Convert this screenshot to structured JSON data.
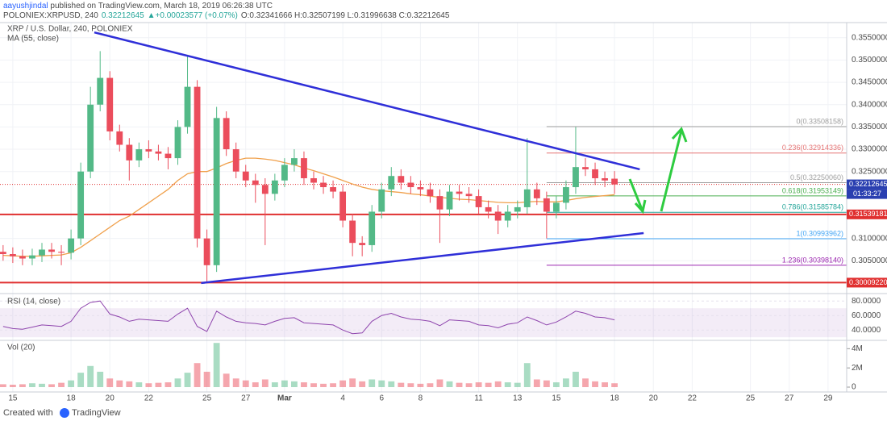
{
  "header": {
    "author": "aayushjindal",
    "published": " published on TradingView.com, March 18, 2019 06:26:38 UTC",
    "symbol": "POLONIEX:XRPUSD, 240",
    "price": "0.32212645",
    "change": "▲+0.00023577 (+0.07%)",
    "ohlc": "O:0.32341666 H:0.32507199 L:0.31996638 C:0.32212645"
  },
  "footer": {
    "created": "Created with",
    "brand": "TradingView"
  },
  "chart_data": {
    "type": "candlestick",
    "title": "XRP / U.S. Dollar, 240, POLONIEX",
    "grid": true,
    "up_color": "#53b987",
    "down_color": "#eb4d5c",
    "xlim": [
      -0.66,
      42.96
    ],
    "xticks": [
      {
        "value": 0,
        "label": "15"
      },
      {
        "value": 3,
        "label": "18"
      },
      {
        "value": 5,
        "label": "20"
      },
      {
        "value": 7,
        "label": "22"
      },
      {
        "value": 10,
        "label": "25"
      },
      {
        "value": 12,
        "label": "27"
      },
      {
        "value": 14,
        "label": "Mar"
      },
      {
        "value": 17,
        "label": "4"
      },
      {
        "value": 19,
        "label": "6"
      },
      {
        "value": 21,
        "label": "8"
      },
      {
        "value": 24,
        "label": "11"
      },
      {
        "value": 26,
        "label": "13"
      },
      {
        "value": 28,
        "label": "15"
      },
      {
        "value": 31,
        "label": "18"
      },
      {
        "value": 33,
        "label": "20"
      },
      {
        "value": 35,
        "label": "22"
      },
      {
        "value": 38,
        "label": "25"
      },
      {
        "value": 40,
        "label": "27"
      },
      {
        "value": 42,
        "label": "29"
      }
    ],
    "ylim": [
      0.298,
      0.3584
    ],
    "yticks": [
      {
        "value": 0.305,
        "label": "0.30500000"
      },
      {
        "value": 0.31,
        "label": "0.31000000"
      },
      {
        "value": 0.325,
        "label": "0.32500000"
      },
      {
        "value": 0.33,
        "label": "0.33000000"
      },
      {
        "value": 0.335,
        "label": "0.33500000"
      },
      {
        "value": 0.34,
        "label": "0.34000000"
      },
      {
        "value": 0.345,
        "label": "0.34500000"
      },
      {
        "value": 0.35,
        "label": "0.35000000"
      },
      {
        "value": 0.355,
        "label": "0.35500000"
      }
    ],
    "x": [
      -0.5,
      0,
      0.5,
      1,
      1.5,
      2,
      2.5,
      3,
      3.5,
      4,
      4.5,
      5,
      5.5,
      6,
      6.5,
      7,
      7.5,
      8,
      8.5,
      9,
      9.5,
      10,
      10.5,
      11,
      11.5,
      12,
      12.5,
      13,
      13.5,
      14,
      14.5,
      15,
      15.5,
      16,
      16.5,
      17,
      17.5,
      18,
      18.5,
      19,
      19.5,
      20,
      20.5,
      21,
      21.5,
      22,
      22.5,
      23,
      23.5,
      24,
      24.5,
      25,
      25.5,
      26,
      26.5,
      27,
      27.5,
      28,
      28.5,
      29,
      29.5,
      30,
      30.5,
      31
    ],
    "open": [
      0.307,
      0.3065,
      0.306,
      0.3055,
      0.3062,
      0.3075,
      0.307,
      0.3068,
      0.31,
      0.325,
      0.34,
      0.346,
      0.334,
      0.331,
      0.3275,
      0.33,
      0.3295,
      0.329,
      0.328,
      0.335,
      0.344,
      0.31,
      0.304,
      0.337,
      0.33,
      0.325,
      0.323,
      0.322,
      0.32,
      0.323,
      0.3265,
      0.328,
      0.3235,
      0.3225,
      0.3215,
      0.3205,
      0.314,
      0.309,
      0.3085,
      0.316,
      0.321,
      0.324,
      0.3225,
      0.3215,
      0.321,
      0.3195,
      0.3165,
      0.3205,
      0.32,
      0.3195,
      0.317,
      0.316,
      0.314,
      0.316,
      0.317,
      0.321,
      0.319,
      0.316,
      0.318,
      0.3215,
      0.326,
      0.3255,
      0.3235,
      0.3234
    ],
    "high": [
      0.3085,
      0.308,
      0.3075,
      0.3077,
      0.309,
      0.309,
      0.3085,
      0.312,
      0.327,
      0.344,
      0.352,
      0.3475,
      0.3355,
      0.3325,
      0.3315,
      0.332,
      0.331,
      0.3305,
      0.3365,
      0.351,
      0.3455,
      0.312,
      0.3395,
      0.3385,
      0.3315,
      0.3265,
      0.3245,
      0.3235,
      0.3245,
      0.328,
      0.33,
      0.3295,
      0.325,
      0.324,
      0.323,
      0.322,
      0.3155,
      0.3105,
      0.3175,
      0.3225,
      0.326,
      0.3255,
      0.324,
      0.323,
      0.3225,
      0.321,
      0.322,
      0.322,
      0.3215,
      0.321,
      0.3185,
      0.3175,
      0.3175,
      0.3185,
      0.3325,
      0.3225,
      0.3205,
      0.3195,
      0.323,
      0.335,
      0.328,
      0.327,
      0.325,
      0.3251
    ],
    "low": [
      0.305,
      0.3045,
      0.304,
      0.304,
      0.3047,
      0.3055,
      0.304,
      0.3053,
      0.3085,
      0.3235,
      0.3385,
      0.332,
      0.3295,
      0.323,
      0.326,
      0.328,
      0.3275,
      0.3255,
      0.3265,
      0.3335,
      0.308,
      0.3,
      0.3025,
      0.3285,
      0.3235,
      0.3215,
      0.318,
      0.3085,
      0.3185,
      0.3215,
      0.325,
      0.322,
      0.321,
      0.32,
      0.319,
      0.3125,
      0.306,
      0.306,
      0.307,
      0.3145,
      0.3195,
      0.321,
      0.32,
      0.3195,
      0.318,
      0.309,
      0.315,
      0.3185,
      0.318,
      0.3155,
      0.3145,
      0.311,
      0.3125,
      0.3145,
      0.3155,
      0.3175,
      0.31,
      0.3145,
      0.3165,
      0.32,
      0.324,
      0.322,
      0.3215,
      0.32
    ],
    "close": [
      0.3065,
      0.306,
      0.3055,
      0.3062,
      0.3075,
      0.307,
      0.3068,
      0.31,
      0.325,
      0.34,
      0.346,
      0.334,
      0.331,
      0.3275,
      0.33,
      0.3295,
      0.329,
      0.328,
      0.335,
      0.344,
      0.31,
      0.304,
      0.337,
      0.33,
      0.325,
      0.323,
      0.322,
      0.32,
      0.323,
      0.3265,
      0.328,
      0.3235,
      0.3225,
      0.3215,
      0.3205,
      0.314,
      0.309,
      0.3085,
      0.316,
      0.321,
      0.324,
      0.3225,
      0.3215,
      0.321,
      0.3195,
      0.3165,
      0.3205,
      0.32,
      0.3195,
      0.317,
      0.316,
      0.314,
      0.316,
      0.317,
      0.321,
      0.319,
      0.316,
      0.318,
      0.3215,
      0.326,
      0.3255,
      0.3235,
      0.323,
      0.3221
    ],
    "ma": {
      "name": "MA (55, close)",
      "color": "#f0a04b",
      "values": [
        0.3062,
        0.3061,
        0.306,
        0.306,
        0.3061,
        0.3062,
        0.3063,
        0.3068,
        0.308,
        0.3095,
        0.311,
        0.3125,
        0.314,
        0.315,
        0.3165,
        0.318,
        0.3195,
        0.321,
        0.323,
        0.3245,
        0.325,
        0.325,
        0.3258,
        0.3268,
        0.3275,
        0.328,
        0.328,
        0.3278,
        0.3275,
        0.327,
        0.3265,
        0.3258,
        0.3252,
        0.3245,
        0.3238,
        0.323,
        0.3222,
        0.3215,
        0.321,
        0.3207,
        0.3205,
        0.3203,
        0.32,
        0.3198,
        0.3195,
        0.3192,
        0.319,
        0.3188,
        0.3187,
        0.3185,
        0.3183,
        0.3181,
        0.318,
        0.318,
        0.3182,
        0.3183,
        0.3182,
        0.3182,
        0.3185,
        0.3189,
        0.3192,
        0.3194,
        0.3196,
        0.3198
      ]
    },
    "trendlines": [
      {
        "color": "#2f2fd8",
        "x": [
          4.2,
          32.3
        ],
        "y": [
          0.3562,
          0.3255
        ]
      },
      {
        "color": "#2f2fd8",
        "x": [
          9.7,
          32.5
        ],
        "y": [
          0.3,
          0.3112
        ]
      }
    ],
    "hlines": [
      {
        "value": 0.31539181,
        "color": "#e03030"
      },
      {
        "value": {
          "value": 0.3000922,
          "label": "0.30009220"
        },
        "color": "#e03030"
      }
    ],
    "last": {
      "value": 0.32212645,
      "color": "#2a3fb0",
      "countdown": "01:33:27"
    },
    "fib": {
      "start": 27.5,
      "levels": [
        {
          "label": "0(0.33508158)",
          "value": 0.33508158,
          "color": "#9e9e9e"
        },
        {
          "label": "0.236(0.32914336)",
          "value": 0.32914336,
          "color": "#e57373"
        },
        {
          "label": "0.5(0.32250060)",
          "value": 0.3225006,
          "color": "#9e9e9e"
        },
        {
          "label": "0.618(0.31953149)",
          "value": 0.31953149,
          "color": "#4caf50"
        },
        {
          "label": "0.786(0.31585784)",
          "value": 0.31585784,
          "color": "#26a69a"
        },
        {
          "label": "1(0.30993962)",
          "value": 0.30993962,
          "color": "#42a5f5"
        },
        {
          "label": "1.236(0.30398140)",
          "value": 0.3039814,
          "color": "#9c27b0"
        }
      ]
    },
    "rsi": {
      "name": "RSI (14, close)",
      "color": "#8e44ad",
      "band": [
        30,
        70
      ],
      "ylim": [
        28,
        88
      ],
      "yticks": [
        {
          "value": 40,
          "label": "40.0000"
        },
        {
          "value": 60,
          "label": "60.0000"
        },
        {
          "value": 80,
          "label": "80.0000"
        }
      ],
      "values": [
        45,
        42,
        41,
        44,
        47,
        46,
        45,
        52,
        70,
        78,
        80,
        62,
        58,
        52,
        55,
        54,
        53,
        52,
        62,
        70,
        45,
        38,
        66,
        58,
        52,
        50,
        49,
        47,
        52,
        56,
        57,
        50,
        49,
        48,
        47,
        40,
        35,
        36,
        52,
        60,
        63,
        58,
        55,
        54,
        52,
        46,
        54,
        53,
        52,
        47,
        46,
        43,
        48,
        50,
        58,
        53,
        47,
        51,
        58,
        66,
        63,
        58,
        57,
        54
      ]
    },
    "volume": {
      "name": "Vol (20)",
      "ylim": [
        0,
        4700000
      ],
      "yticks": [
        0,
        {
          "value": 2000000,
          "label": "2M"
        },
        {
          "value": 4000000,
          "label": "4M"
        }
      ],
      "values": [
        300000,
        250000,
        300000,
        400000,
        350000,
        300000,
        450000,
        700000,
        1500000,
        2200000,
        1600000,
        900000,
        700000,
        600000,
        500000,
        400000,
        450000,
        500000,
        900000,
        1500000,
        2500000,
        1600000,
        4600000,
        1400000,
        900000,
        700000,
        500000,
        800000,
        500000,
        700000,
        600000,
        500000,
        400000,
        350000,
        400000,
        700000,
        900000,
        600000,
        800000,
        700000,
        600000,
        450000,
        400000,
        350000,
        400000,
        800000,
        600000,
        450000,
        400000,
        500000,
        450000,
        600000,
        500000,
        450000,
        2500000,
        800000,
        700000,
        500000,
        900000,
        1600000,
        900000,
        600000,
        500000,
        400000
      ]
    }
  }
}
